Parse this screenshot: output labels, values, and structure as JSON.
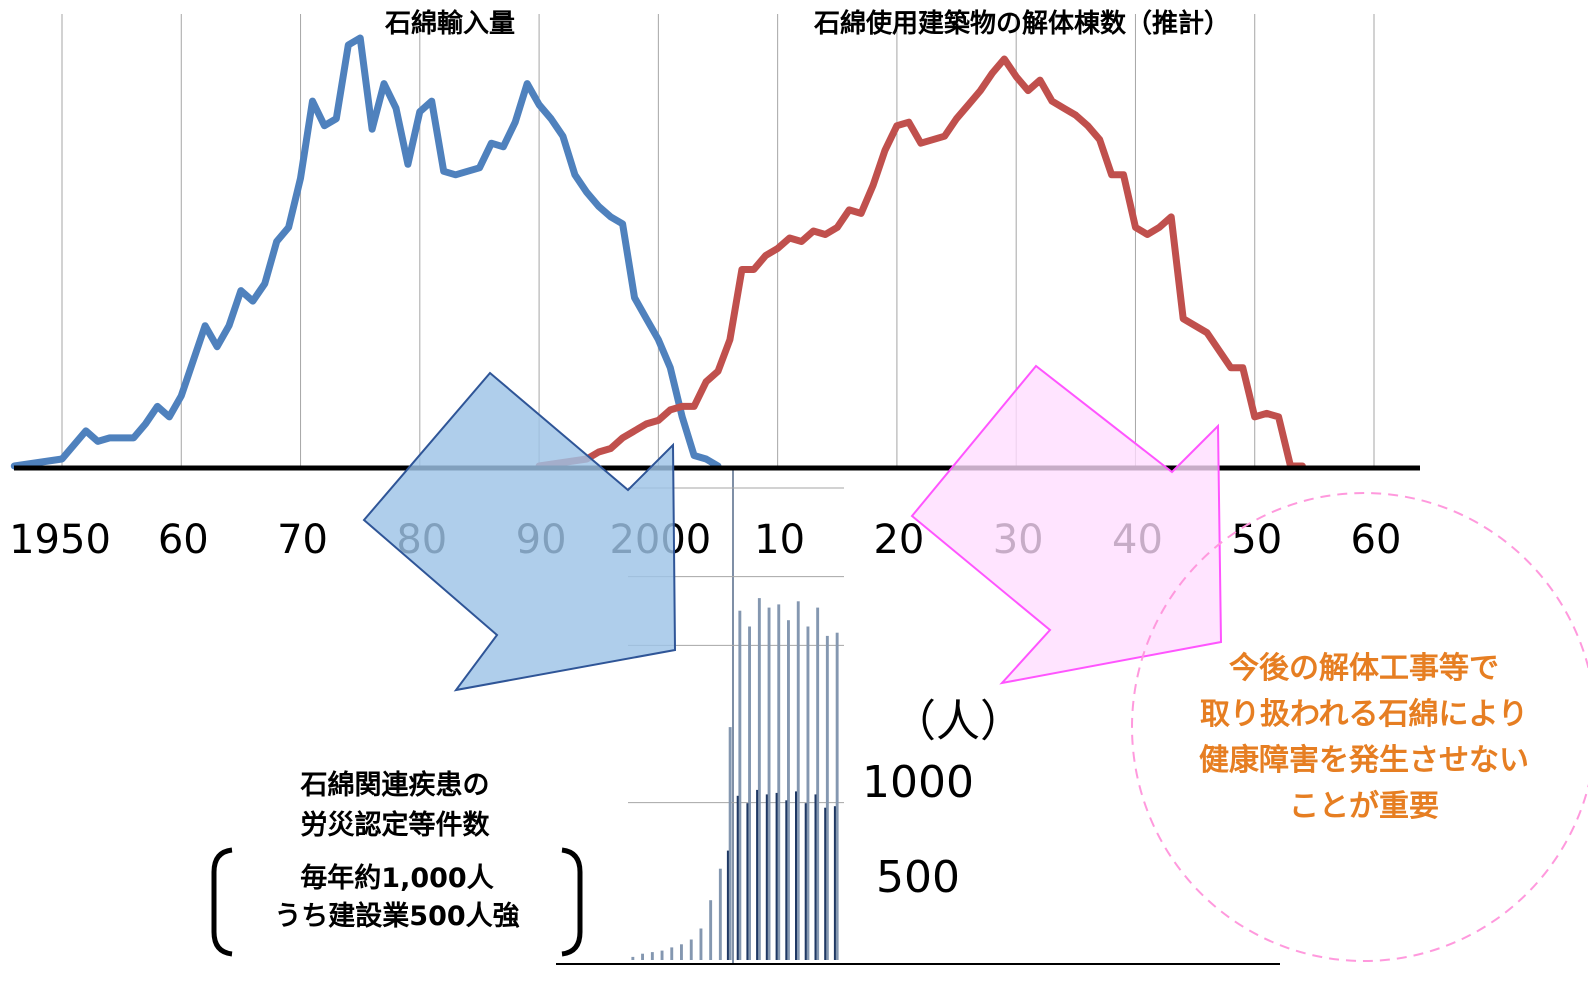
{
  "chart_data": [
    {
      "type": "line",
      "title": "",
      "x_ticks": [
        "1950",
        "60",
        "70",
        "80",
        "90",
        "2000",
        "10",
        "20",
        "30",
        "40",
        "50",
        "60"
      ],
      "x_range": [
        1946,
        2066
      ],
      "series": [
        {
          "name": "石綿輸入量",
          "color": "#4F81BD",
          "points": [
            [
              1946,
              0
            ],
            [
              1950,
              2
            ],
            [
              1951,
              6
            ],
            [
              1952,
              10
            ],
            [
              1953,
              7
            ],
            [
              1954,
              8
            ],
            [
              1955,
              8
            ],
            [
              1956,
              8
            ],
            [
              1957,
              12
            ],
            [
              1958,
              17
            ],
            [
              1959,
              14
            ],
            [
              1960,
              20
            ],
            [
              1961,
              30
            ],
            [
              1962,
              40
            ],
            [
              1963,
              34
            ],
            [
              1964,
              40
            ],
            [
              1965,
              50
            ],
            [
              1966,
              47
            ],
            [
              1967,
              52
            ],
            [
              1968,
              64
            ],
            [
              1969,
              68
            ],
            [
              1970,
              82
            ],
            [
              1971,
              104
            ],
            [
              1972,
              97
            ],
            [
              1973,
              99
            ],
            [
              1974,
              120
            ],
            [
              1975,
              122
            ],
            [
              1976,
              96
            ],
            [
              1977,
              109
            ],
            [
              1978,
              102
            ],
            [
              1979,
              86
            ],
            [
              1980,
              101
            ],
            [
              1981,
              104
            ],
            [
              1982,
              84
            ],
            [
              1983,
              83
            ],
            [
              1984,
              84
            ],
            [
              1985,
              85
            ],
            [
              1986,
              92
            ],
            [
              1987,
              91
            ],
            [
              1988,
              98
            ],
            [
              1989,
              109
            ],
            [
              1990,
              103
            ],
            [
              1991,
              99
            ],
            [
              1992,
              94
            ],
            [
              1993,
              83
            ],
            [
              1994,
              78
            ],
            [
              1995,
              74
            ],
            [
              1996,
              71
            ],
            [
              1997,
              69
            ],
            [
              1998,
              48
            ],
            [
              1999,
              42
            ],
            [
              2000,
              36
            ],
            [
              2001,
              28
            ],
            [
              2002,
              14
            ],
            [
              2003,
              3
            ],
            [
              2004,
              2
            ],
            [
              2005,
              0
            ]
          ]
        },
        {
          "name": "石綿使用建築物の解体棟数（推計）",
          "color": "#C0504D",
          "points": [
            [
              1990,
              0
            ],
            [
              1992,
              1
            ],
            [
              1994,
              2
            ],
            [
              1995,
              4
            ],
            [
              1996,
              5
            ],
            [
              1997,
              8
            ],
            [
              1998,
              10
            ],
            [
              1999,
              12
            ],
            [
              2000,
              13
            ],
            [
              2001,
              16
            ],
            [
              2002,
              17
            ],
            [
              2003,
              17
            ],
            [
              2004,
              24
            ],
            [
              2005,
              27
            ],
            [
              2006,
              36
            ],
            [
              2007,
              56
            ],
            [
              2008,
              56
            ],
            [
              2009,
              60
            ],
            [
              2010,
              62
            ],
            [
              2011,
              65
            ],
            [
              2012,
              64
            ],
            [
              2013,
              67
            ],
            [
              2014,
              66
            ],
            [
              2015,
              68
            ],
            [
              2016,
              73
            ],
            [
              2017,
              72
            ],
            [
              2018,
              80
            ],
            [
              2019,
              90
            ],
            [
              2020,
              97
            ],
            [
              2021,
              98
            ],
            [
              2022,
              92
            ],
            [
              2023,
              93
            ],
            [
              2024,
              94
            ],
            [
              2025,
              99
            ],
            [
              2026,
              103
            ],
            [
              2027,
              107
            ],
            [
              2028,
              112
            ],
            [
              2029,
              116
            ],
            [
              2030,
              111
            ],
            [
              2031,
              107
            ],
            [
              2032,
              110
            ],
            [
              2033,
              104
            ],
            [
              2034,
              102
            ],
            [
              2035,
              100
            ],
            [
              2036,
              97
            ],
            [
              2037,
              93
            ],
            [
              2038,
              83
            ],
            [
              2039,
              83
            ],
            [
              2040,
              68
            ],
            [
              2041,
              66
            ],
            [
              2042,
              68
            ],
            [
              2043,
              71
            ],
            [
              2044,
              42
            ],
            [
              2045,
              40
            ],
            [
              2046,
              38
            ],
            [
              2047,
              33
            ],
            [
              2048,
              28
            ],
            [
              2049,
              28
            ],
            [
              2050,
              14
            ],
            [
              2051,
              15
            ],
            [
              2052,
              14
            ],
            [
              2053,
              0
            ],
            [
              2054,
              0
            ]
          ]
        }
      ],
      "series_labels": [
        "石綿輸入量",
        "石綿使用建築物の解体棟数（推計）"
      ]
    },
    {
      "type": "bar",
      "title": "石綿関連疾患の 労災認定等件数",
      "unit_label": "（人）",
      "y_ticks": [
        "1000",
        "500"
      ],
      "ylim": [
        0,
        1500
      ],
      "color": "#1F3864",
      "values": [
        10,
        20,
        25,
        30,
        40,
        50,
        65,
        100,
        190,
        290,
        740,
        1110,
        1060,
        1150,
        1120,
        1130,
        1080,
        1140,
        1060,
        1120,
        1030,
        1040
      ]
    }
  ],
  "bar_note": {
    "title_line1": "石綿関連疾患の",
    "title_line2": "労災認定等件数",
    "summary_line1": "毎年約1,000人",
    "summary_line2": "うち建設業500人強"
  },
  "callout": {
    "line1": "今後の解体工事等で",
    "line2": "取り扱われる石綿により",
    "line3": "健康障害を発生させない",
    "line4": "ことが重要"
  },
  "colors": {
    "import_line": "#4F81BD",
    "demolition_line": "#C0504D",
    "blue_arrow_fill": "#9DC3E6",
    "blue_arrow_stroke": "#2F5597",
    "pink_arrow_fill": "#FFDDFF",
    "pink_arrow_stroke": "#FF55FF",
    "callout_text": "#E67E22",
    "callout_circle": "#FF99DD"
  }
}
